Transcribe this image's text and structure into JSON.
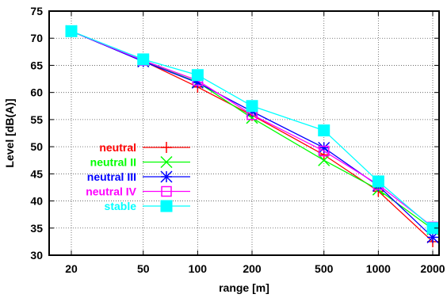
{
  "chart_data": {
    "type": "line",
    "title": "",
    "xlabel": "range [m]",
    "ylabel": "Level [dB(A)]",
    "x_scale": "log",
    "x": [
      20,
      50,
      100,
      200,
      500,
      1000,
      2000
    ],
    "x_tick_labels": [
      "20",
      "50",
      "100",
      "200",
      "500",
      "1000",
      "2000"
    ],
    "ylim": [
      30,
      75
    ],
    "y_ticks": [
      30,
      35,
      40,
      45,
      50,
      55,
      60,
      65,
      70,
      75
    ],
    "grid": true,
    "legend_position": "left",
    "series": [
      {
        "name": "neutral",
        "color": "#ff0000",
        "marker": "plus",
        "values": [
          71.3,
          65.8,
          61.0,
          55.8,
          48.5,
          41.8,
          32.5
        ]
      },
      {
        "name": "neutral II",
        "color": "#00ff00",
        "marker": "cross",
        "values": [
          71.3,
          65.8,
          61.9,
          55.3,
          47.5,
          42.1,
          34.8
        ]
      },
      {
        "name": "neutral III",
        "color": "#0000ff",
        "marker": "asterisk",
        "values": [
          71.3,
          65.7,
          61.8,
          56.5,
          49.8,
          42.8,
          33.3
        ]
      },
      {
        "name": "neutral IV",
        "color": "#ff00ff",
        "marker": "open-square",
        "values": [
          71.3,
          65.9,
          62.2,
          55.9,
          49.2,
          43.0,
          35.2
        ]
      },
      {
        "name": "stable",
        "color": "#00ffff",
        "marker": "filled-square",
        "values": [
          71.3,
          66.1,
          63.2,
          57.5,
          53.0,
          43.6,
          35.0
        ]
      }
    ]
  }
}
